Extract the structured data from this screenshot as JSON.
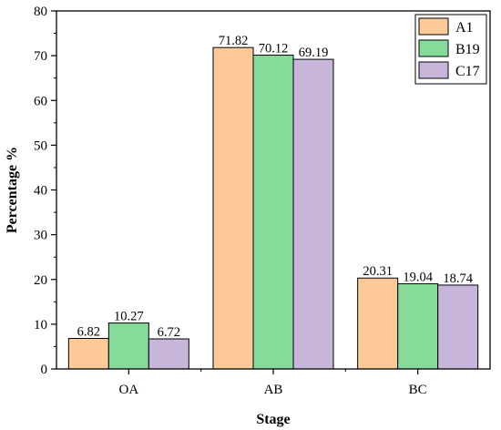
{
  "chart_data": {
    "type": "bar",
    "title": "",
    "xlabel": "Stage",
    "ylabel": "Percentage %",
    "categories": [
      "OA",
      "AB",
      "BC"
    ],
    "ylim": [
      0,
      80
    ],
    "yticks": [
      0,
      10,
      20,
      30,
      40,
      50,
      60,
      70,
      80
    ],
    "grid": false,
    "legend_position": "top-right",
    "series": [
      {
        "name": "A1",
        "values": [
          6.82,
          71.82,
          20.31
        ],
        "value_labels": [
          "6.82",
          "71.82",
          "20.31"
        ],
        "color": "#FDC996"
      },
      {
        "name": "B19",
        "values": [
          10.27,
          70.12,
          19.04
        ],
        "value_labels": [
          "10.27",
          "70.12",
          "19.04"
        ],
        "color": "#86DA9A"
      },
      {
        "name": "C17",
        "values": [
          6.72,
          69.19,
          18.74
        ],
        "value_labels": [
          "6.72",
          "69.19",
          "18.74"
        ],
        "color": "#C8B5DA"
      }
    ]
  }
}
